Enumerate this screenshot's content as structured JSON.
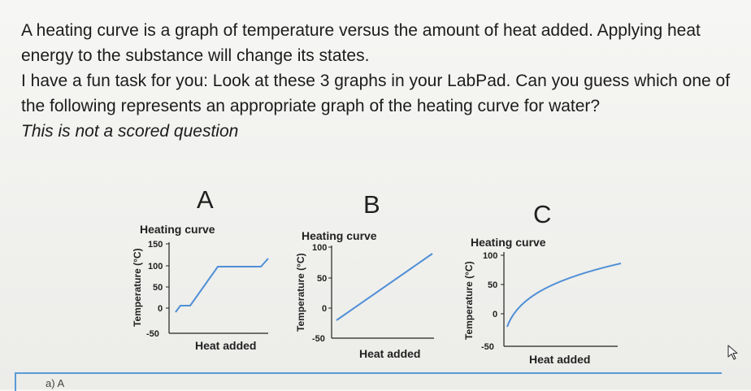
{
  "question": {
    "line1": "A heating curve is a graph of temperature versus the amount of heat added. Applying heat energy to the substance will change its states.",
    "line2": "I have a fun task for you: Look at these 3 graphs in your LabPad. Can you guess which one of the following represents an appropriate graph of the heating curve for water?",
    "note": "This is not a scored question"
  },
  "panels": [
    {
      "letter": "A",
      "title": "Heating curve",
      "ylabel": "Temperature (°C)",
      "xlabel": "Heat added",
      "ticks": [
        "150",
        "100",
        "50",
        "0",
        "-50"
      ]
    },
    {
      "letter": "B",
      "title": "Heating curve",
      "ylabel": "Temperature (°C)",
      "xlabel": "Heat added",
      "ticks": [
        "100",
        "50",
        "0",
        "-50"
      ]
    },
    {
      "letter": "C",
      "title": "Heating curve",
      "ylabel": "Temperature (°C)",
      "xlabel": "Heat added",
      "ticks": [
        "100",
        "50",
        "0",
        "-50"
      ]
    }
  ],
  "answer_area": {
    "text": "a)  A"
  },
  "colors": {
    "curve": "#4f8fd6",
    "accent": "#5a9ad6"
  },
  "icons": {
    "cursor": "cursor-icon"
  }
}
